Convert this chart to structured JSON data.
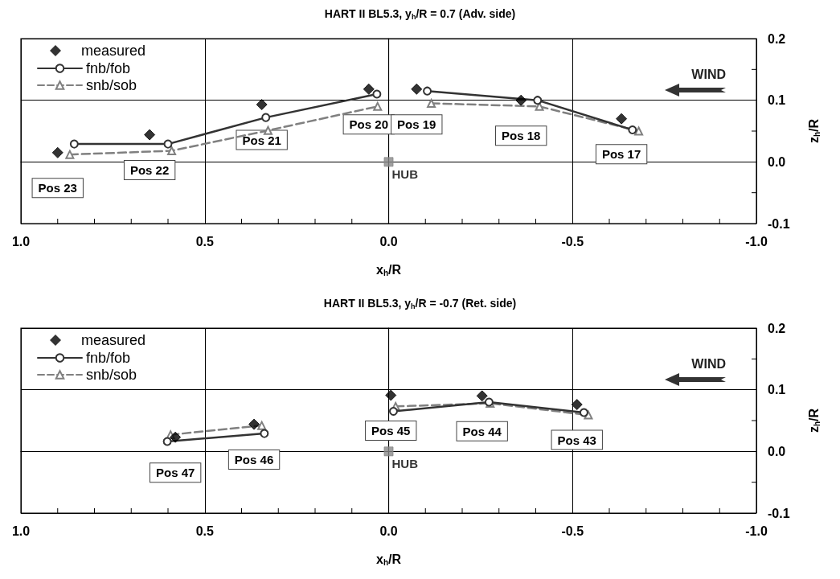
{
  "chart_data": [
    {
      "type": "line",
      "title": "HART II BL5.3, y$_{h}$/R = 0.7 (Adv. side)",
      "xlabel": "x$_{h}$/R",
      "ylabel": "z$_{h}$/R",
      "xlim": [
        1.0,
        -1.0
      ],
      "ylim": [
        -0.1,
        0.2
      ],
      "xticks": [
        {
          "value": 1,
          "label": "1.0"
        },
        {
          "value": 0.9,
          "label": null
        },
        {
          "value": 0.8,
          "label": null
        },
        {
          "value": 0.7,
          "label": null
        },
        {
          "value": 0.6,
          "label": null
        },
        {
          "value": 0.5,
          "label": "0.5"
        },
        {
          "value": 0.4,
          "label": null
        },
        {
          "value": 0.3,
          "label": null
        },
        {
          "value": 0.2,
          "label": null
        },
        {
          "value": 0.1,
          "label": null
        },
        {
          "value": 0,
          "label": "0.0"
        },
        {
          "value": -0.1,
          "label": null
        },
        {
          "value": -0.2,
          "label": null
        },
        {
          "value": -0.3,
          "label": null
        },
        {
          "value": -0.4,
          "label": null
        },
        {
          "value": -0.5,
          "label": "-0.5"
        },
        {
          "value": -0.6,
          "label": null
        },
        {
          "value": -0.7,
          "label": null
        },
        {
          "value": -0.8,
          "label": null
        },
        {
          "value": -0.9,
          "label": null
        },
        {
          "value": -1,
          "label": "-1.0"
        }
      ],
      "yticks": [
        -0.1,
        {
          "value": -0.05,
          "label": null
        },
        {
          "value": 0,
          "label": "0.0"
        },
        {
          "value": 0.05,
          "label": null
        },
        0.1,
        {
          "value": 0.15,
          "label": null
        },
        0.2
      ],
      "grid": true,
      "legend": "top left",
      "series": [
        {
          "name": "measured",
          "type": "scatter",
          "marker": "diamond",
          "color": "#000000",
          "x": [
            0.9,
            0.65,
            0.345,
            0.054,
            -0.076,
            -0.36,
            -0.633
          ],
          "values": [
            0.015,
            0.044,
            0.093,
            0.118,
            0.118,
            0.1,
            0.07
          ]
        },
        {
          "name": "fnb/fob",
          "marker": "circle",
          "line_style": "solid",
          "color": "#333333",
          "x": [
            0.855,
            0.6,
            0.334,
            0.032,
            null,
            -0.105,
            -0.405,
            -0.663
          ],
          "values": [
            0.029,
            0.029,
            0.072,
            0.11,
            null,
            0.115,
            0.1,
            0.052
          ]
        },
        {
          "name": "snb/sob",
          "marker": "triangle",
          "line_style": "dashed",
          "color": "#808080",
          "x": [
            0.867,
            0.59,
            0.328,
            0.03,
            null,
            -0.116,
            -0.41,
            -0.68
          ],
          "values": [
            0.012,
            0.018,
            0.051,
            0.09,
            null,
            0.095,
            0.09,
            0.05
          ]
        },
        {
          "name": "HUB",
          "type": "scatter",
          "marker": "square",
          "color": "#888888",
          "x": [
            0
          ],
          "values": [
            0
          ]
        }
      ],
      "annotations": [
        "WIND",
        {
          "text": "Pos 23",
          "x": 0.9,
          "y": 0.015
        },
        {
          "text": "Pos 22",
          "x": 0.65,
          "y": 0.044
        },
        {
          "text": "Pos 21",
          "x": 0.345,
          "y": 0.093
        },
        {
          "text": "Pos 20",
          "x": 0.054,
          "y": 0.118
        },
        {
          "text": "Pos 19",
          "x": -0.076,
          "y": 0.118
        },
        {
          "text": "Pos 18",
          "x": -0.36,
          "y": 0.1
        },
        {
          "text": "Pos 17",
          "x": -0.633,
          "y": 0.07
        }
      ]
    },
    {
      "type": "line",
      "title": "HART II BL5.3, y$_{h}$/R = -0.7 (Ret. side)",
      "xlabel": "x$_{h}$/R",
      "ylabel": "z$_{h}$/R",
      "xlim": [
        1.0,
        -1.0
      ],
      "ylim": [
        -0.1,
        0.2
      ],
      "xticks": [
        {
          "value": 1,
          "label": "1.0"
        },
        {
          "value": 0.9,
          "label": null
        },
        {
          "value": 0.8,
          "label": null
        },
        {
          "value": 0.7,
          "label": null
        },
        {
          "value": 0.6,
          "label": null
        },
        {
          "value": 0.5,
          "label": "0.5"
        },
        {
          "value": 0.4,
          "label": null
        },
        {
          "value": 0.3,
          "label": null
        },
        {
          "value": 0.2,
          "label": null
        },
        {
          "value": 0.1,
          "label": null
        },
        {
          "value": 0,
          "label": "0.0"
        },
        {
          "value": -0.1,
          "label": null
        },
        {
          "value": -0.2,
          "label": null
        },
        {
          "value": -0.3,
          "label": null
        },
        {
          "value": -0.4,
          "label": null
        },
        {
          "value": -0.5,
          "label": "-0.5"
        },
        {
          "value": -0.6,
          "label": null
        },
        {
          "value": -0.7,
          "label": null
        },
        {
          "value": -0.8,
          "label": null
        },
        {
          "value": -0.9,
          "label": null
        },
        {
          "value": -1,
          "label": "-1.0"
        }
      ],
      "yticks": [
        -0.1,
        {
          "value": -0.05,
          "label": null
        },
        {
          "value": 0,
          "label": "0.0"
        },
        {
          "value": 0.05,
          "label": null
        },
        0.1,
        {
          "value": 0.15,
          "label": null
        },
        0.2
      ],
      "grid": true,
      "legend": "top left",
      "series": [
        {
          "name": "measured",
          "type": "scatter",
          "marker": "diamond",
          "color": "#000000",
          "x": [
            0.58,
            0.366,
            -0.006,
            -0.254,
            -0.512
          ],
          "values": [
            0.023,
            0.044,
            0.091,
            0.09,
            0.076
          ]
        },
        {
          "name": "fnb/fob",
          "marker": "circle",
          "line_style": "solid",
          "color": "#333333",
          "x": [
            0.602,
            0.338,
            null,
            -0.013,
            -0.273,
            -0.531
          ],
          "values": [
            0.016,
            0.029,
            null,
            0.065,
            0.08,
            0.063
          ]
        },
        {
          "name": "snb/sob",
          "marker": "triangle",
          "line_style": "dashed",
          "color": "#808080",
          "x": [
            0.593,
            0.345,
            null,
            -0.019,
            -0.276,
            -0.543
          ],
          "values": [
            0.027,
            0.042,
            null,
            0.073,
            0.078,
            0.059
          ]
        },
        {
          "name": "HUB",
          "type": "scatter",
          "marker": "square",
          "color": "#888888",
          "x": [
            0
          ],
          "values": [
            0
          ]
        }
      ],
      "annotations": [
        "WIND",
        {
          "text": "Pos 47",
          "x": 0.58,
          "y": 0.023
        },
        {
          "text": "Pos 46",
          "x": 0.366,
          "y": 0.044
        },
        {
          "text": "Pos 45",
          "x": -0.006,
          "y": 0.091
        },
        {
          "text": "Pos 44",
          "x": -0.254,
          "y": 0.09
        },
        {
          "text": "Pos 43",
          "x": -0.512,
          "y": 0.076
        }
      ]
    }
  ]
}
